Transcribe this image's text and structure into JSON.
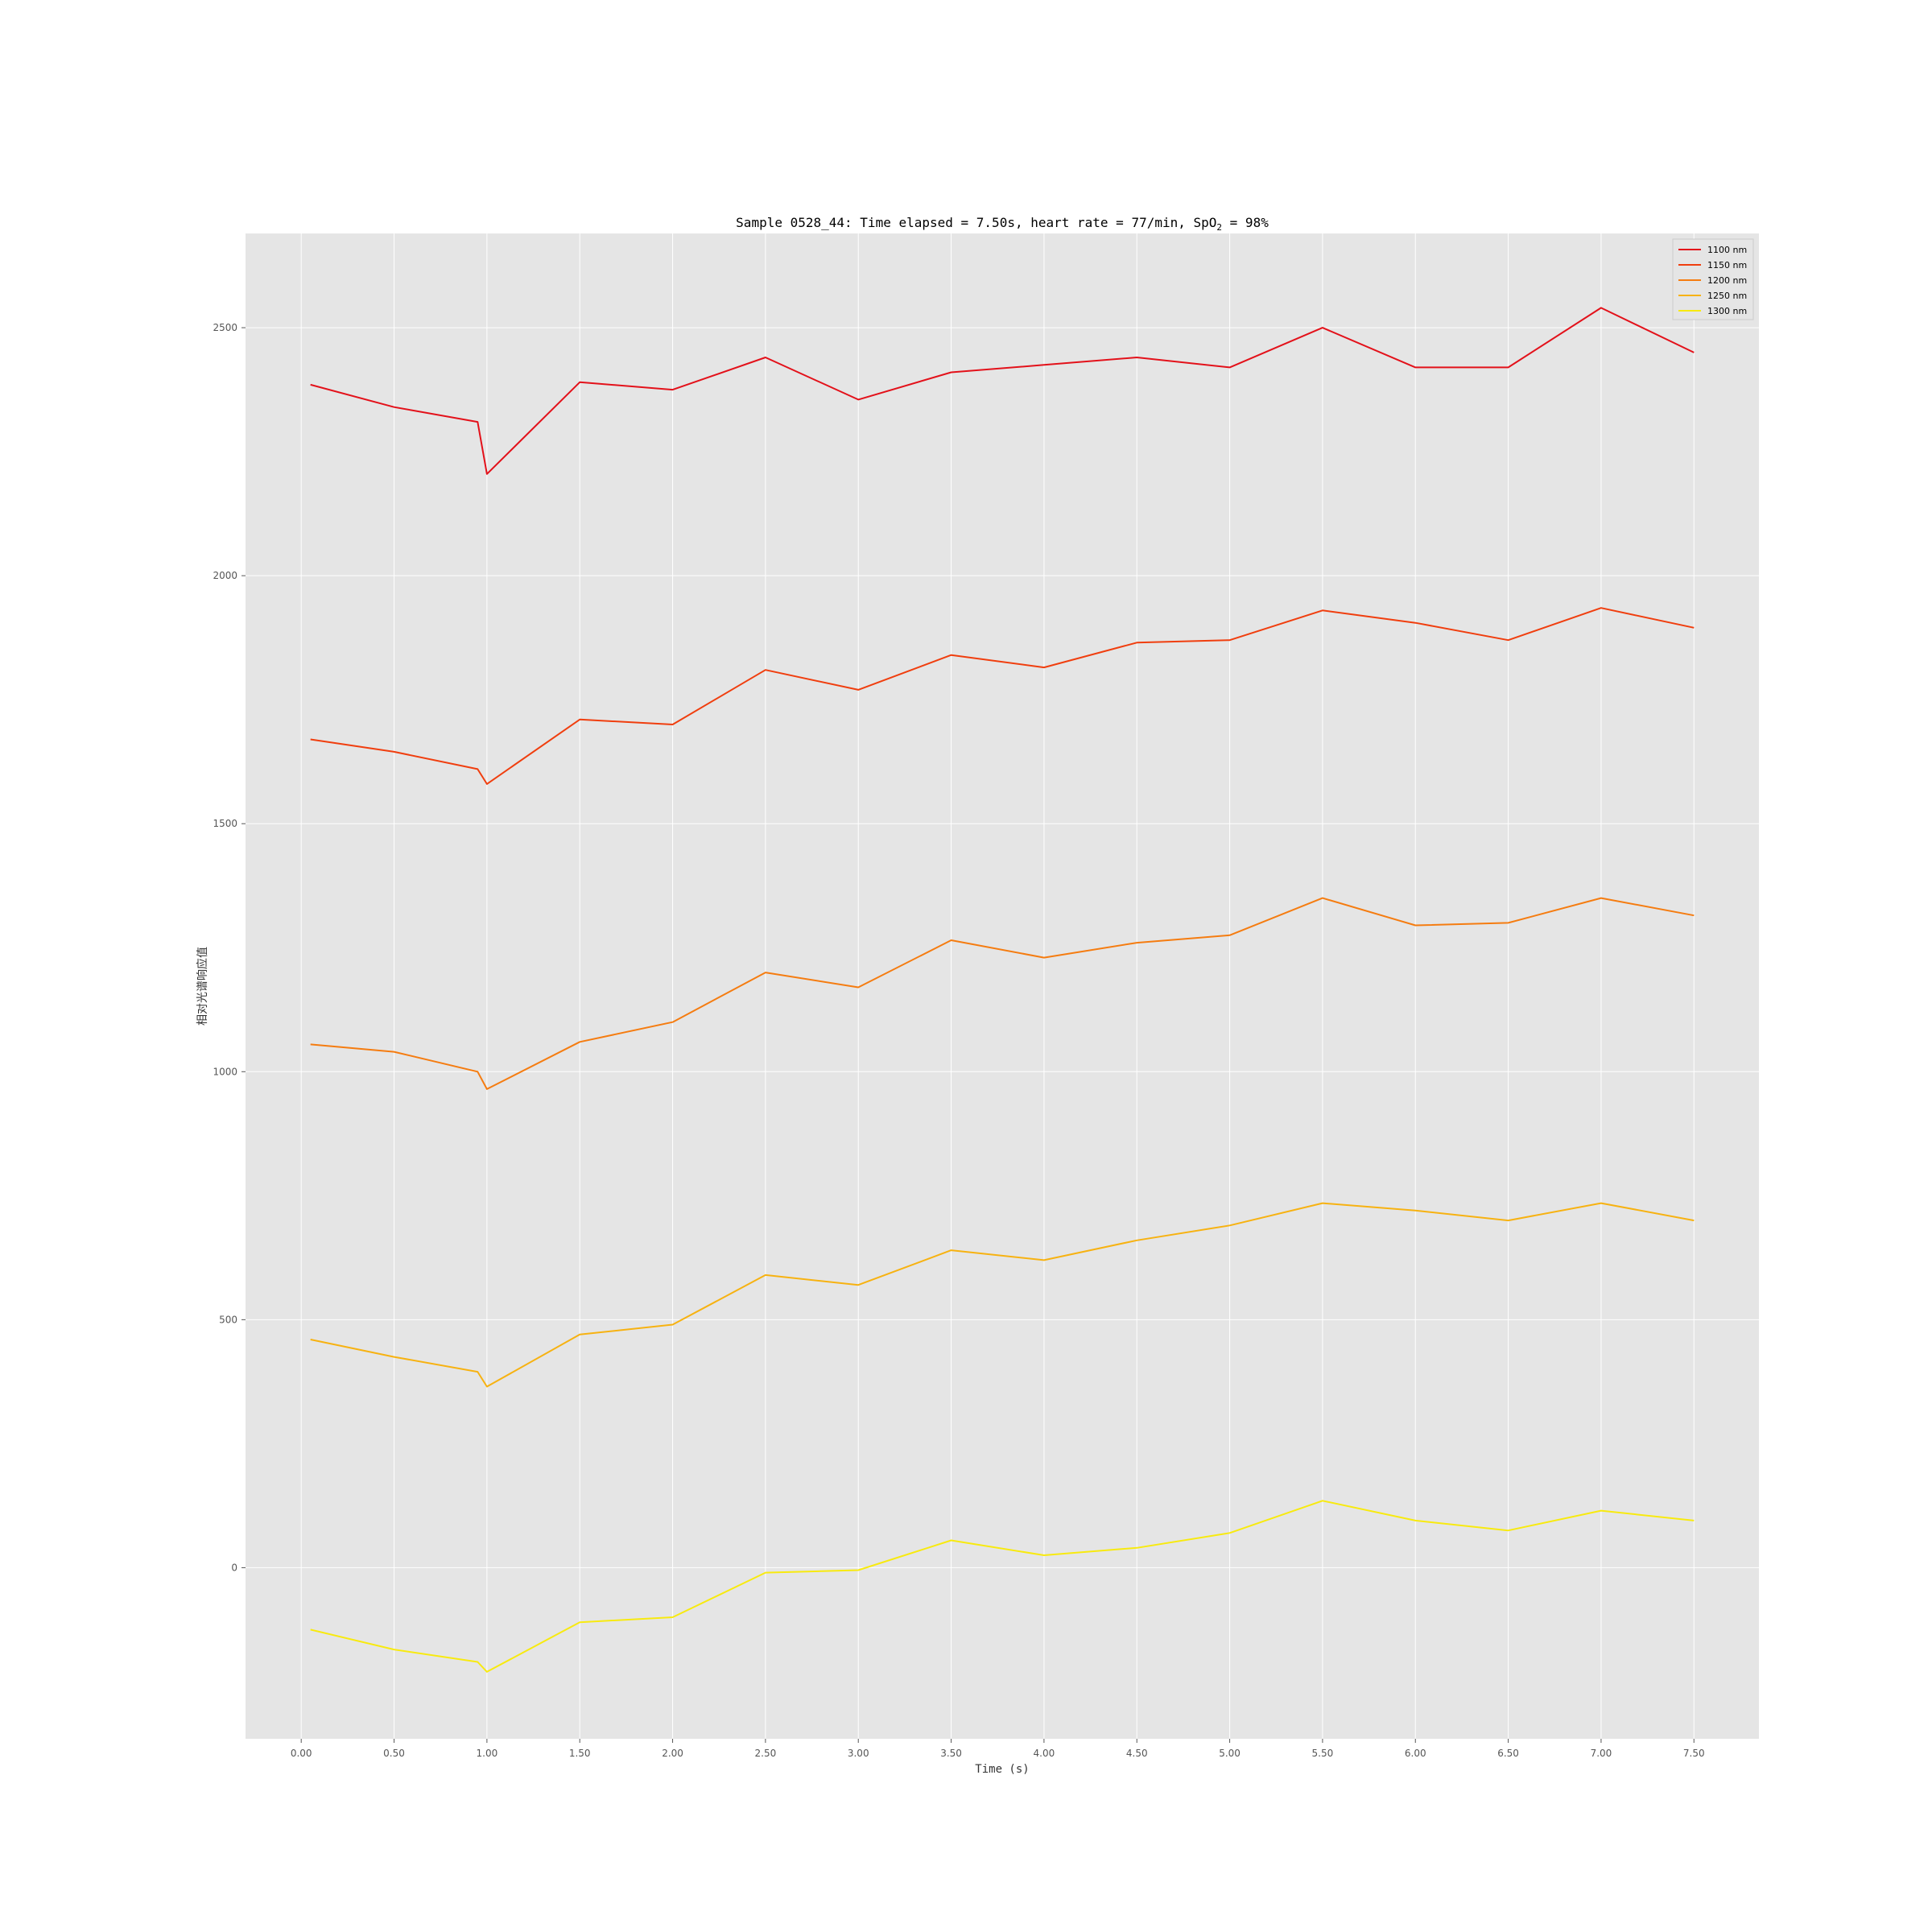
{
  "chart_data": {
    "type": "line",
    "title": {
      "main": "Sample 0528_44: Time elapsed = 7.50s, heart rate = 77/min, SpO",
      "sub": "2",
      "tail": " = 98%"
    },
    "xlabel": "Time (s)",
    "ylabel": "相对光谱响应值",
    "xlim": [
      -0.3,
      7.85
    ],
    "ylim": [
      -345,
      2690
    ],
    "xticks": [
      0,
      0.5,
      1,
      1.5,
      2,
      2.5,
      3,
      3.5,
      4,
      4.5,
      5,
      5.5,
      6,
      6.5,
      7,
      7.5
    ],
    "xtick_labels": [
      "0.00",
      "0.50",
      "1.00",
      "1.50",
      "2.00",
      "2.50",
      "3.00",
      "3.50",
      "4.00",
      "4.50",
      "5.00",
      "5.50",
      "6.00",
      "6.50",
      "7.00",
      "7.50"
    ],
    "yticks": [
      0,
      500,
      1000,
      1500,
      2000,
      2500
    ],
    "ytick_labels": [
      "0",
      "500",
      "1000",
      "1500",
      "2000",
      "2500"
    ],
    "grid": true,
    "legend_position": "top-right",
    "background_color": "#e5e5e5",
    "x": [
      0.05,
      0.5,
      0.95,
      1.0,
      1.5,
      2.0,
      2.5,
      3.0,
      3.5,
      4.0,
      4.5,
      5.0,
      5.5,
      6.0,
      6.5,
      7.0,
      7.5
    ],
    "series": [
      {
        "name": "1100 nm",
        "color": "#e3111a",
        "values": [
          2385,
          2340,
          2310,
          2205,
          2390,
          2375,
          2440,
          2355,
          2410,
          2425,
          2440,
          2420,
          2500,
          2420,
          2420,
          2540,
          2450
        ]
      },
      {
        "name": "1150 nm",
        "color": "#f03e0e",
        "values": [
          1670,
          1645,
          1610,
          1580,
          1710,
          1700,
          1810,
          1770,
          1840,
          1815,
          1865,
          1870,
          1930,
          1905,
          1870,
          1935,
          1895
        ]
      },
      {
        "name": "1200 nm",
        "color": "#f57c10",
        "values": [
          1055,
          1040,
          1000,
          965,
          1060,
          1100,
          1200,
          1170,
          1265,
          1230,
          1260,
          1275,
          1350,
          1295,
          1300,
          1350,
          1315
        ]
      },
      {
        "name": "1250 nm",
        "color": "#f7b211",
        "values": [
          460,
          425,
          395,
          365,
          470,
          490,
          590,
          570,
          640,
          620,
          660,
          690,
          735,
          720,
          700,
          735,
          700
        ]
      },
      {
        "name": "1300 nm",
        "color": "#f8ea0f",
        "values": [
          -125,
          -165,
          -190,
          -210,
          -110,
          -100,
          -10,
          -5,
          55,
          25,
          40,
          70,
          135,
          95,
          75,
          115,
          95
        ]
      }
    ]
  }
}
